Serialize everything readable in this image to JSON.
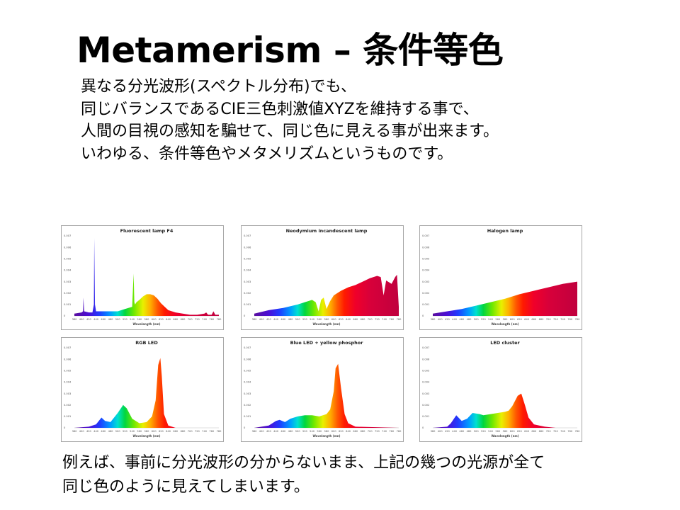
{
  "page": {
    "title": "Metamerism – 条件等色",
    "intro_lines": [
      "異なる分光波形(スペクトル分布)でも、",
      "同じバランスであるCIE三色刺激値XYZを維持する事で、",
      "人間の目視の感知を騙せて、同じ色に見える事が出来ます。",
      "いわゆる、条件等色やメタメリズムというものです。"
    ],
    "outro_lines": [
      "例えば、事前に分光波形の分からないまま、上記の幾つの光源が全て",
      "同じ色のように見えてしまいます。"
    ]
  },
  "chart_data": [
    {
      "type": "area",
      "title": "Fluorescent lamp F4",
      "xlabel": "Wavelength (nm)",
      "xlim": [
        380,
        780
      ],
      "ylim": [
        0,
        0.007
      ],
      "x_ticks": [
        "380",
        "400",
        "420",
        "440",
        "460",
        "480",
        "500",
        "520",
        "540",
        "560",
        "580",
        "600",
        "620",
        "640",
        "660",
        "680",
        "700",
        "720",
        "740",
        "760",
        "780"
      ],
      "y_ticks": [
        "0",
        "0.001",
        "0.002",
        "0.003",
        "0.004",
        "0.005",
        "0.006",
        "0.007"
      ],
      "x": [
        380,
        400,
        404,
        405,
        407,
        420,
        430,
        434,
        435,
        437,
        440,
        460,
        480,
        500,
        520,
        540,
        544,
        546,
        548,
        552,
        560,
        570,
        580,
        590,
        600,
        610,
        620,
        630,
        640,
        660,
        680,
        700,
        720,
        740,
        745,
        750,
        760,
        765,
        770,
        780
      ],
      "y": [
        0.0002,
        0.0003,
        0.0004,
        0.0016,
        0.0004,
        0.0003,
        0.0003,
        0.001,
        0.0068,
        0.001,
        0.0004,
        0.0004,
        0.0004,
        0.0004,
        0.0006,
        0.0008,
        0.0037,
        0.0012,
        0.001,
        0.0012,
        0.0014,
        0.0017,
        0.0019,
        0.0019,
        0.0018,
        0.0015,
        0.0011,
        0.0008,
        0.0005,
        0.0003,
        0.0002,
        0.0001,
        0.0001,
        0.0002,
        0.0003,
        0.0001,
        0.0001,
        0.0004,
        0.0001,
        0.0001
      ]
    },
    {
      "type": "area",
      "title": "Neodymium incandescent lamp",
      "xlabel": "Wavelength (nm)",
      "xlim": [
        380,
        780
      ],
      "ylim": [
        0,
        0.007
      ],
      "x_ticks": [
        "380",
        "400",
        "420",
        "440",
        "460",
        "480",
        "500",
        "520",
        "540",
        "560",
        "580",
        "600",
        "620",
        "640",
        "660",
        "680",
        "700",
        "720",
        "740",
        "760",
        "780"
      ],
      "y_ticks": [
        "0",
        "0.001",
        "0.002",
        "0.003",
        "0.004",
        "0.005",
        "0.006",
        "0.007"
      ],
      "x": [
        380,
        420,
        460,
        500,
        520,
        540,
        550,
        558,
        565,
        572,
        580,
        590,
        600,
        620,
        640,
        660,
        680,
        700,
        720,
        730,
        738,
        745,
        760,
        770,
        775,
        780
      ],
      "y": [
        0.0002,
        0.0005,
        0.0007,
        0.001,
        0.0012,
        0.0014,
        0.0012,
        0.0004,
        0.0014,
        0.0016,
        0.0006,
        0.0013,
        0.0018,
        0.0022,
        0.0025,
        0.0027,
        0.003,
        0.0033,
        0.0035,
        0.0034,
        0.0018,
        0.0031,
        0.0028,
        0.0034,
        0.0036,
        0.0008
      ]
    },
    {
      "type": "area",
      "title": "Halogen lamp",
      "xlabel": "Wavelength (nm)",
      "xlim": [
        380,
        780
      ],
      "ylim": [
        0,
        0.007
      ],
      "x_ticks": [
        "380",
        "400",
        "420",
        "440",
        "460",
        "480",
        "500",
        "520",
        "540",
        "560",
        "580",
        "600",
        "620",
        "640",
        "660",
        "680",
        "700",
        "720",
        "740",
        "760",
        "780"
      ],
      "y_ticks": [
        "0",
        "0.001",
        "0.002",
        "0.003",
        "0.004",
        "0.005",
        "0.006",
        "0.007"
      ],
      "x": [
        380,
        420,
        460,
        500,
        540,
        580,
        620,
        660,
        700,
        740,
        780
      ],
      "y": [
        0.0002,
        0.0004,
        0.0006,
        0.0009,
        0.0012,
        0.0015,
        0.0019,
        0.0022,
        0.0025,
        0.0028,
        0.003
      ]
    },
    {
      "type": "area",
      "title": "RGB LED",
      "xlabel": "Wavelength (nm)",
      "xlim": [
        380,
        780
      ],
      "ylim": [
        0,
        0.007
      ],
      "x_ticks": [
        "380",
        "400",
        "420",
        "440",
        "460",
        "480",
        "500",
        "520",
        "540",
        "560",
        "580",
        "600",
        "620",
        "640",
        "660",
        "680",
        "700",
        "720",
        "740",
        "760",
        "780"
      ],
      "y_ticks": [
        "0",
        "0.001",
        "0.002",
        "0.003",
        "0.004",
        "0.005",
        "0.006",
        "0.007"
      ],
      "x": [
        380,
        420,
        440,
        455,
        465,
        480,
        500,
        515,
        525,
        540,
        560,
        580,
        595,
        605,
        612,
        618,
        622,
        628,
        640,
        660,
        780
      ],
      "y": [
        0,
        0.0001,
        0.0003,
        0.0009,
        0.0006,
        0.0005,
        0.0013,
        0.002,
        0.0017,
        0.0008,
        0.0004,
        0.0005,
        0.001,
        0.0024,
        0.0055,
        0.0061,
        0.0045,
        0.0012,
        0.0002,
        0,
        0
      ]
    },
    {
      "type": "area",
      "title": "Blue LED + yellow phosphor",
      "xlabel": "Wavelength (nm)",
      "xlim": [
        380,
        780
      ],
      "ylim": [
        0,
        0.007
      ],
      "x_ticks": [
        "380",
        "400",
        "420",
        "440",
        "460",
        "480",
        "500",
        "520",
        "540",
        "560",
        "580",
        "600",
        "620",
        "640",
        "660",
        "680",
        "700",
        "720",
        "740",
        "760",
        "780"
      ],
      "y_ticks": [
        "0",
        "0.001",
        "0.002",
        "0.003",
        "0.004",
        "0.005",
        "0.006",
        "0.007"
      ],
      "x": [
        380,
        420,
        440,
        450,
        465,
        480,
        500,
        520,
        540,
        560,
        580,
        590,
        600,
        605,
        612,
        620,
        630,
        640,
        660,
        780
      ],
      "y": [
        0,
        0.0002,
        0.0006,
        0.0007,
        0.0005,
        0.0008,
        0.001,
        0.0011,
        0.0011,
        0.001,
        0.0012,
        0.0016,
        0.0032,
        0.0052,
        0.0056,
        0.0035,
        0.0012,
        0.0004,
        0.0001,
        0
      ]
    },
    {
      "type": "area",
      "title": "LED cluster",
      "xlabel": "Wavelength (nm)",
      "xlim": [
        380,
        780
      ],
      "ylim": [
        0,
        0.007
      ],
      "x_ticks": [
        "380",
        "400",
        "420",
        "440",
        "460",
        "480",
        "500",
        "520",
        "540",
        "560",
        "580",
        "600",
        "620",
        "640",
        "660",
        "680",
        "700",
        "720",
        "740",
        "760",
        "780"
      ],
      "y_ticks": [
        "0",
        "0.001",
        "0.002",
        "0.003",
        "0.004",
        "0.005",
        "0.006",
        "0.007"
      ],
      "x": [
        380,
        420,
        430,
        445,
        460,
        475,
        490,
        510,
        520,
        540,
        560,
        580,
        590,
        600,
        615,
        625,
        635,
        645,
        660,
        690,
        720,
        780
      ],
      "y": [
        0,
        0.0001,
        0.0004,
        0.0011,
        0.0006,
        0.0008,
        0.0013,
        0.0012,
        0.0011,
        0.0012,
        0.0013,
        0.0014,
        0.0015,
        0.0019,
        0.0028,
        0.003,
        0.002,
        0.0009,
        0.0003,
        0.0001,
        0,
        0
      ]
    }
  ]
}
